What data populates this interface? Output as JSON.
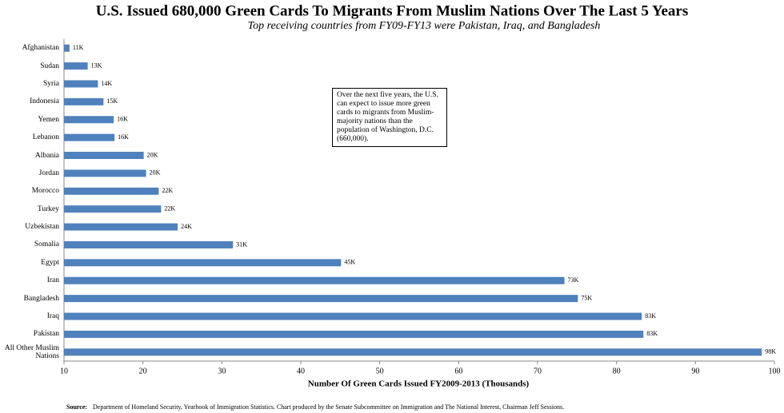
{
  "chart_data": {
    "type": "barh",
    "title": "U.S. Issued 680,000 Green Cards To Migrants From Muslim Nations Over The Last 5 Years",
    "subtitle": "Top receiving countries from FY09-FY13 were Pakistan, Iraq, and Bangladesh",
    "x_label": "Number Of Green Cards Issued FY2009-2013 (Thousands)",
    "annotation": "Over the next five years, the U.S. can expect to issue more green cards to migrants from Muslim-majority nations than the population of Washington, D.C. (660,000).",
    "source_label": "Source:",
    "source": "Department of Homeland Security, Yearbook of Immigration Statistics. Chart produced by the Senate Subcommittee on Immigration and The National Interest, Chairman Jeff Sessions.",
    "categories": [
      "Afghanistan",
      "Sudan",
      "Syria",
      "Indonesia",
      "Yemen",
      "Lebanon",
      "Albania",
      "Jordan",
      "Morocco",
      "Turkey",
      "Uzbekistan",
      "Somalia",
      "Egypt",
      "Iran",
      "Bangladesh",
      "Iraq",
      "Pakistan",
      "All Other Muslim Nations"
    ],
    "values": [
      10.7,
      13.0,
      14.3,
      15.0,
      16.3,
      16.4,
      20.1,
      20.4,
      22.0,
      22.3,
      24.4,
      31.4,
      45.1,
      73.4,
      75.1,
      83.2,
      83.4,
      98.4
    ],
    "value_labels": [
      "11K",
      "13K",
      "14K",
      "15K",
      "16K",
      "16K",
      "20K",
      "20K",
      "22K",
      "22K",
      "24K",
      "31K",
      "45K",
      "73K",
      "75K",
      "83K",
      "83K",
      "98K"
    ],
    "color": "#4f81bd",
    "xlim": [
      10,
      100
    ],
    "xticks": [
      10,
      20,
      30,
      40,
      50,
      60,
      70,
      80,
      90,
      100
    ]
  }
}
